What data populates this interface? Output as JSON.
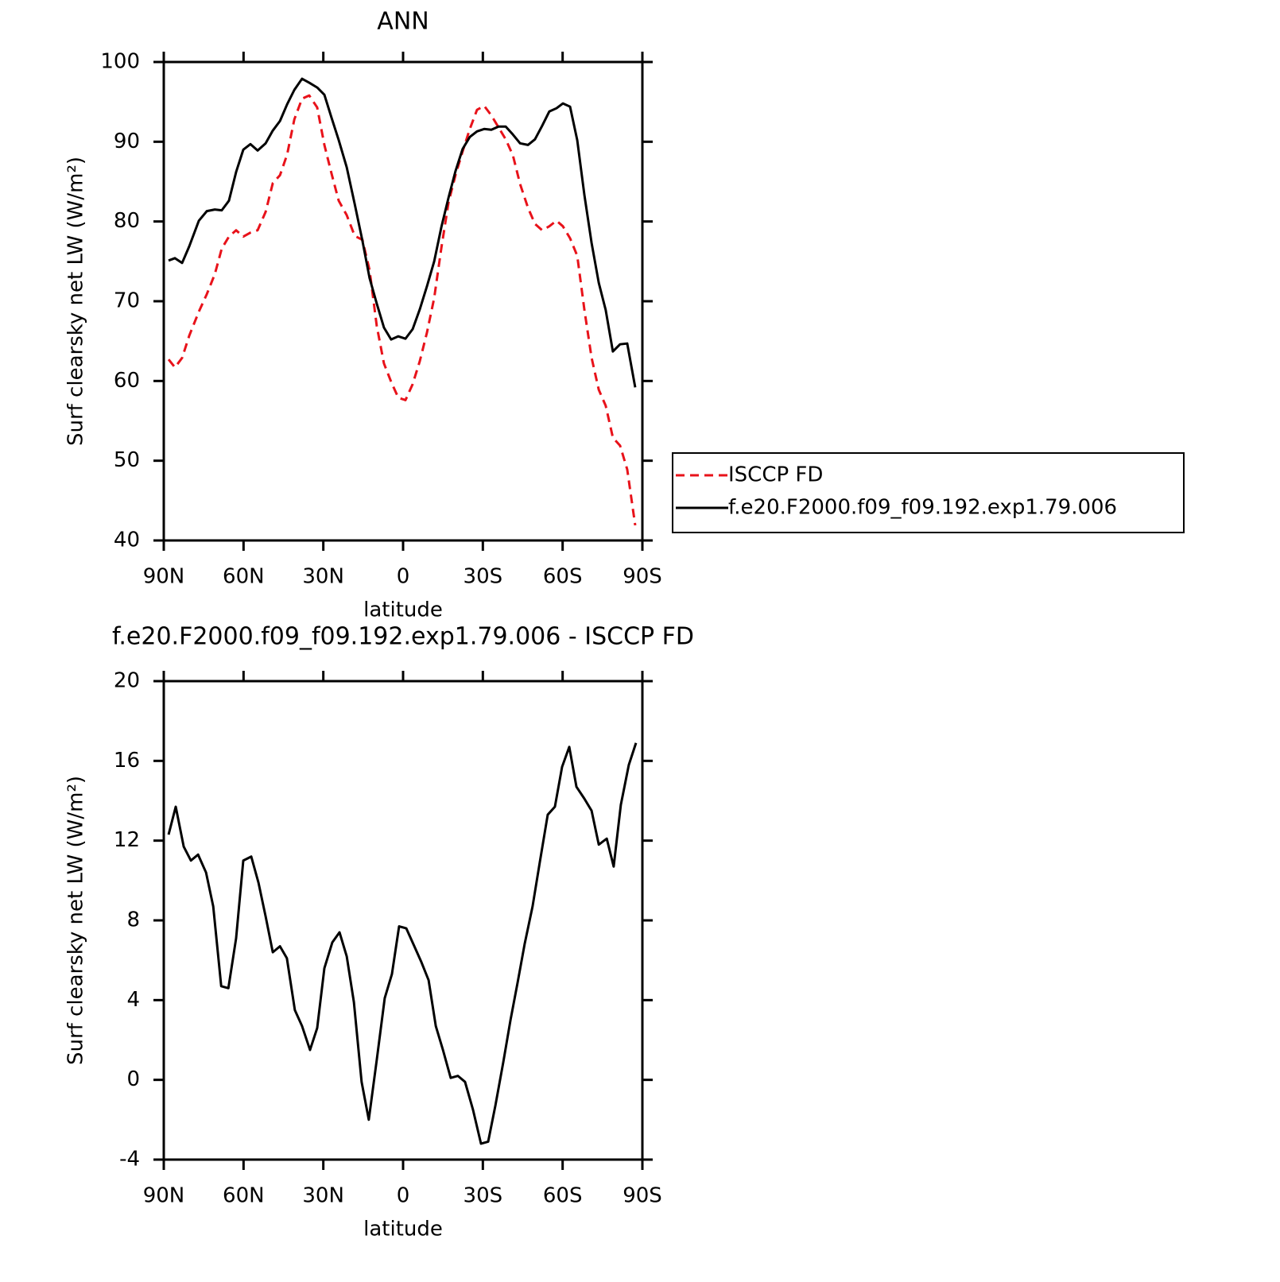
{
  "chart_data": [
    {
      "type": "line",
      "title": "ANN",
      "ylabel": "Surf clearsky net LW (W/m²)",
      "xlabel": "latitude",
      "x": [
        88.2,
        85.8,
        83.1,
        80.4,
        76.8,
        73.8,
        70.8,
        68.2,
        65.5,
        62.8,
        60.1,
        57.4,
        54.7,
        51.7,
        49.0,
        46.3,
        43.6,
        40.9,
        38.0,
        35.3,
        32.3,
        29.6,
        26.9,
        24.2,
        21.2,
        18.2,
        15.3,
        12.6,
        9.9,
        7.2,
        4.5,
        1.8,
        -0.9,
        -3.6,
        -6.3,
        -9.0,
        -11.7,
        -14.4,
        -17.1,
        -19.7,
        -22.4,
        -25.1,
        -27.8,
        -30.5,
        -33.2,
        -35.9,
        -38.6,
        -41.3,
        -44.0,
        -47.0,
        -49.6,
        -52.3,
        -55.0,
        -57.7,
        -60.1,
        -62.8,
        -65.5,
        -68.2,
        -70.9,
        -73.6,
        -76.2,
        -78.9,
        -81.6,
        -84.3,
        -87.3
      ],
      "series": [
        {
          "name": "ISCCP FD",
          "color": "#e8121a",
          "dashed": true,
          "values": [
            62.7,
            61.7,
            62.9,
            65.7,
            68.7,
            70.9,
            73.4,
            76.6,
            78.1,
            78.9,
            78.1,
            78.6,
            78.9,
            81.2,
            84.8,
            85.8,
            88.4,
            92.8,
            95.4,
            95.8,
            94.3,
            89.6,
            86.0,
            82.6,
            80.8,
            78.2,
            77.7,
            73.9,
            66.9,
            62.2,
            59.9,
            57.9,
            57.6,
            59.6,
            62.5,
            66.1,
            70.4,
            76.7,
            82.4,
            85.8,
            88.8,
            91.6,
            94.0,
            94.5,
            93.3,
            91.8,
            90.3,
            88.3,
            84.7,
            81.7,
            79.7,
            78.9,
            79.4,
            80.1,
            79.4,
            77.9,
            75.7,
            68.9,
            62.9,
            58.9,
            56.9,
            52.9,
            51.9,
            48.9,
            41.9
          ]
        },
        {
          "name": "f.e20.F2000.f09_f09.192.exp1.79.006",
          "color": "#000000",
          "dashed": false,
          "values": [
            75.1,
            75.4,
            74.8,
            76.9,
            80.1,
            81.3,
            81.5,
            81.4,
            82.6,
            86.2,
            89.0,
            89.7,
            88.9,
            89.8,
            91.4,
            92.6,
            94.7,
            96.5,
            97.9,
            97.4,
            96.8,
            95.9,
            93.0,
            90.2,
            86.8,
            82.2,
            77.6,
            72.9,
            69.7,
            66.7,
            65.2,
            65.6,
            65.3,
            66.5,
            69.0,
            71.9,
            75.0,
            79.3,
            83.0,
            86.3,
            89.1,
            90.6,
            91.3,
            91.6,
            91.5,
            91.9,
            91.9,
            90.9,
            89.8,
            89.6,
            90.3,
            92.0,
            93.8,
            94.2,
            94.8,
            94.4,
            90.2,
            83.3,
            77.3,
            72.3,
            68.9,
            63.7,
            64.6,
            64.7,
            59.2
          ]
        }
      ],
      "xlim": [
        90,
        -90
      ],
      "xticks": [
        {
          "value": 90,
          "label": "90N"
        },
        {
          "value": 60,
          "label": "60N"
        },
        {
          "value": 30,
          "label": "30N"
        },
        0,
        {
          "value": -30,
          "label": "30S"
        },
        {
          "value": -60,
          "label": "60S"
        },
        {
          "value": -90,
          "label": "90S"
        }
      ],
      "ylim": [
        40,
        100
      ],
      "yticks": [
        40,
        50,
        60,
        70,
        80,
        90,
        100
      ],
      "legend": "right"
    },
    {
      "type": "line",
      "title": "f.e20.F2000.f09_f09.192.exp1.79.006 - ISCCP FD",
      "ylabel": "Surf clearsky net LW (W/m²)",
      "xlabel": "latitude",
      "x": [
        88.2,
        85.5,
        82.5,
        79.8,
        77.1,
        74.1,
        71.4,
        68.4,
        65.7,
        62.8,
        60.1,
        57.1,
        54.4,
        51.7,
        49.0,
        46.3,
        43.7,
        40.7,
        38.0,
        35.0,
        32.3,
        29.6,
        26.6,
        23.9,
        21.2,
        18.5,
        15.6,
        12.9,
        9.9,
        6.9,
        4.2,
        1.5,
        -1.2,
        -3.9,
        -6.9,
        -9.6,
        -12.3,
        -15.0,
        -17.9,
        -20.6,
        -23.3,
        -26.3,
        -29.3,
        -32.0,
        -34.7,
        -37.7,
        -40.4,
        -43.1,
        -45.7,
        -48.7,
        -51.4,
        -54.4,
        -57.1,
        -59.8,
        -62.5,
        -65.2,
        -68.2,
        -70.9,
        -73.6,
        -76.6,
        -79.2,
        -81.9,
        -84.9,
        -87.6
      ],
      "series": [
        {
          "color": "#000000",
          "dashed": false,
          "values": [
            12.3,
            13.7,
            11.7,
            11.0,
            11.3,
            10.4,
            8.7,
            4.7,
            4.6,
            7.1,
            11.0,
            11.2,
            9.9,
            8.2,
            6.4,
            6.7,
            6.1,
            3.5,
            2.7,
            1.5,
            2.6,
            5.6,
            6.9,
            7.4,
            6.2,
            3.9,
            -0.1,
            -2.0,
            1.0,
            4.1,
            5.3,
            7.7,
            7.6,
            6.8,
            5.9,
            5.0,
            2.7,
            1.5,
            0.1,
            0.2,
            -0.1,
            -1.5,
            -3.2,
            -3.1,
            -1.3,
            0.9,
            3.0,
            4.9,
            6.8,
            8.7,
            10.9,
            13.3,
            13.7,
            15.7,
            16.7,
            14.7,
            14.1,
            13.5,
            11.8,
            12.1,
            10.7,
            13.8,
            15.8,
            16.9
          ]
        }
      ],
      "xlim": [
        90,
        -90
      ],
      "xticks": [
        {
          "value": 90,
          "label": "90N"
        },
        {
          "value": 60,
          "label": "60N"
        },
        {
          "value": 30,
          "label": "30N"
        },
        0,
        {
          "value": -30,
          "label": "30S"
        },
        {
          "value": -60,
          "label": "60S"
        },
        {
          "value": -90,
          "label": "90S"
        }
      ],
      "ylim": [
        -4,
        20
      ],
      "yticks": [
        -4,
        0,
        4,
        8,
        12,
        16,
        20
      ]
    }
  ]
}
